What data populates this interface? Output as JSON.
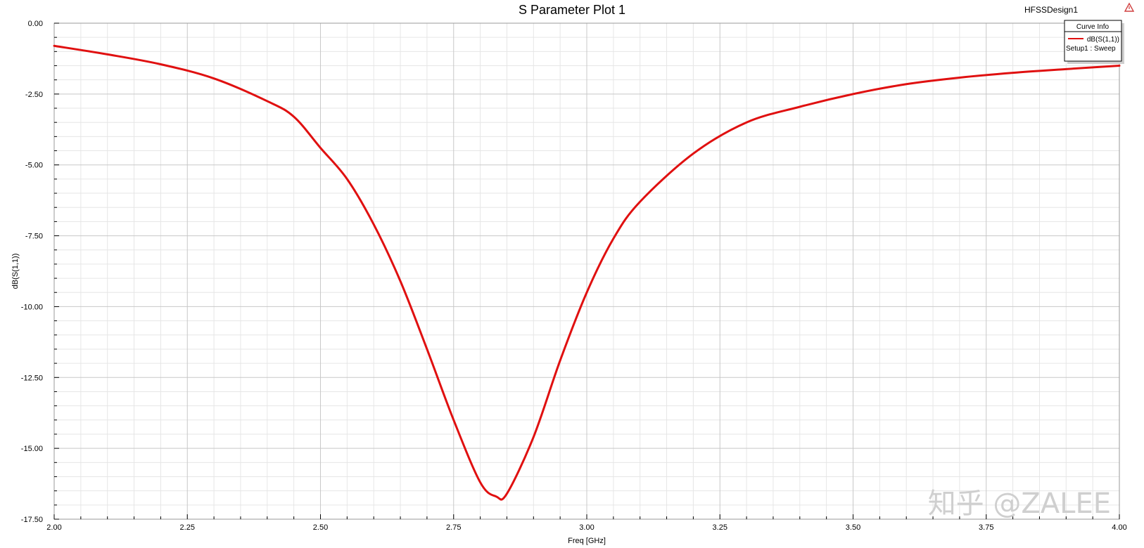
{
  "design_name": "HFSSDesign1",
  "watermark": "知乎 @ZALEE",
  "colors": {
    "curve": "#e01010",
    "grid_major": "#c8c8c8",
    "grid_minor": "#e6e6e6",
    "background": "#ffffff",
    "warning_icon": "#d04040"
  },
  "icons": {
    "warning": "warning-triangle-icon"
  },
  "legend": {
    "title": "Curve Info",
    "curve_name": "dB(S(1,1))",
    "setup": "Setup1 : Sweep"
  },
  "chart_data": {
    "type": "line",
    "title": "S Parameter Plot 1",
    "xlabel": "Freq [GHz]",
    "ylabel": "dB(S(1,1))",
    "xlim": [
      2.0,
      4.0
    ],
    "ylim": [
      -17.5,
      0.0
    ],
    "xticks": [
      "2.00",
      "2.25",
      "2.50",
      "2.75",
      "3.00",
      "3.25",
      "3.50",
      "3.75",
      "4.00"
    ],
    "yticks": [
      "0.00",
      "-2.50",
      "-5.00",
      "-7.50",
      "-10.00",
      "-12.50",
      "-15.00",
      "-17.50"
    ],
    "grid": true,
    "legend_position": "top-right",
    "series": [
      {
        "name": "dB(S(1,1))",
        "x": [
          2.0,
          2.1,
          2.2,
          2.3,
          2.4,
          2.45,
          2.5,
          2.55,
          2.6,
          2.65,
          2.7,
          2.75,
          2.8,
          2.83,
          2.85,
          2.9,
          2.95,
          3.0,
          3.05,
          3.1,
          3.2,
          3.3,
          3.4,
          3.5,
          3.6,
          3.7,
          3.8,
          3.9,
          4.0
        ],
        "y": [
          -0.8,
          -1.1,
          -1.45,
          -1.95,
          -2.75,
          -3.3,
          -4.4,
          -5.5,
          -7.1,
          -9.1,
          -11.5,
          -14.0,
          -16.2,
          -16.7,
          -16.6,
          -14.6,
          -11.9,
          -9.5,
          -7.6,
          -6.3,
          -4.6,
          -3.5,
          -2.95,
          -2.5,
          -2.15,
          -1.92,
          -1.75,
          -1.62,
          -1.5
        ]
      }
    ]
  }
}
